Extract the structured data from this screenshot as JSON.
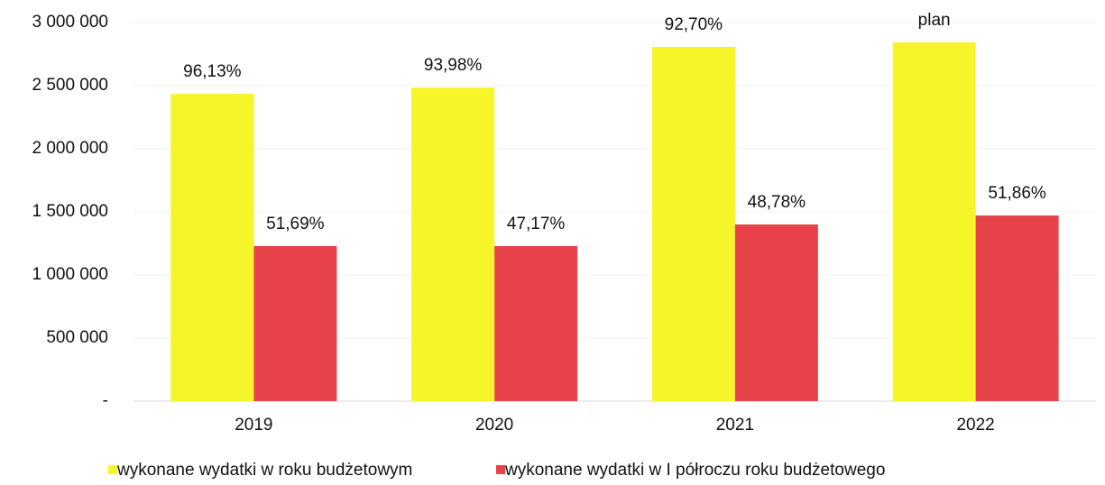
{
  "chart_data": {
    "type": "bar",
    "categories": [
      "2019",
      "2020",
      "2021",
      "2022"
    ],
    "series": [
      {
        "name": "wykonane wydatki w roku budżetowym",
        "color": "#f5f52a",
        "values": [
          2435000,
          2485000,
          2807000,
          2843000
        ],
        "annotations": [
          "96,13%",
          "93,98%",
          "92,70%",
          "plan"
        ]
      },
      {
        "name": "wykonane wydatki w I półroczu roku budżetowego",
        "color": "#e8434b",
        "values": [
          1229000,
          1229000,
          1400000,
          1471000
        ],
        "annotations": [
          "51,69%",
          "47,17%",
          "48,78%",
          "51,86%"
        ]
      }
    ],
    "ylim": [
      0,
      3000000
    ],
    "yticks": [
      {
        "value": 0,
        "label": "-"
      },
      {
        "value": 500000,
        "label": "500 000"
      },
      {
        "value": 1000000,
        "label": "1 000 000"
      },
      {
        "value": 1500000,
        "label": "1 500 000"
      },
      {
        "value": 2000000,
        "label": "2 000 000"
      },
      {
        "value": 2500000,
        "label": "2 500 000"
      },
      {
        "value": 3000000,
        "label": "3 000 000"
      }
    ],
    "grid": true,
    "legend": "bottom"
  }
}
